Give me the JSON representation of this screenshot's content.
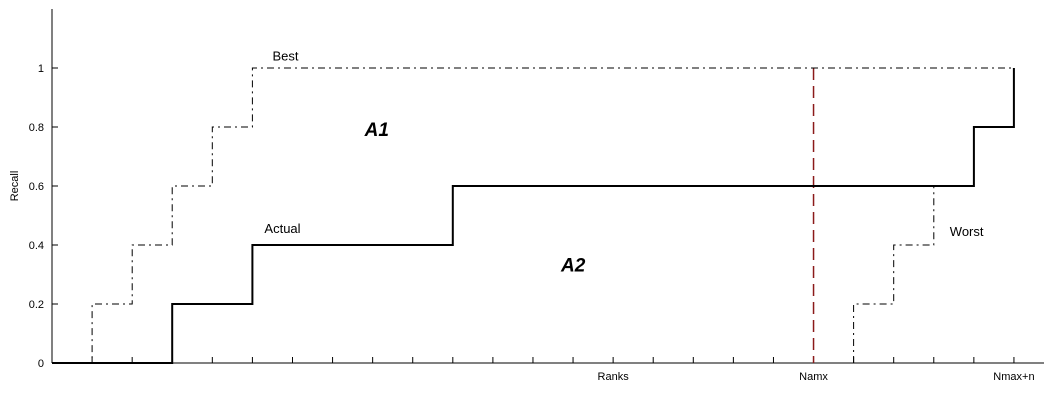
{
  "chart_data": {
    "type": "line",
    "title": "",
    "xlabel": "",
    "ylabel": "Recall",
    "xlim": [
      0,
      24.75
    ],
    "ylim": [
      0,
      1.2
    ],
    "y_ticks": [
      0,
      0.2,
      0.4,
      0.6,
      0.8,
      1
    ],
    "y_tick_labels": [
      "0",
      "0.2",
      "0.4",
      "0.6",
      "0.8",
      "1"
    ],
    "x_minor_ticks": [
      1,
      2,
      3,
      4,
      5,
      6,
      7,
      8,
      9,
      10,
      11,
      12,
      13,
      14,
      15,
      16,
      17,
      18,
      19,
      20,
      21,
      22,
      23,
      24
    ],
    "x_tick_labels": [
      {
        "x": 14,
        "label": "Ranks"
      },
      {
        "x": 19,
        "label": "Namx"
      },
      {
        "x": 24,
        "label": "Nmax+n"
      }
    ],
    "grid": false,
    "series": [
      {
        "name": "Best",
        "style": "dashdot",
        "color": "#000000",
        "points": [
          [
            0,
            0
          ],
          [
            1,
            0
          ],
          [
            1,
            0.2
          ],
          [
            2,
            0.2
          ],
          [
            2,
            0.4
          ],
          [
            3,
            0.4
          ],
          [
            3,
            0.6
          ],
          [
            4,
            0.6
          ],
          [
            4,
            0.8
          ],
          [
            5,
            0.8
          ],
          [
            5,
            1
          ],
          [
            24,
            1
          ]
        ]
      },
      {
        "name": "Actual",
        "style": "solid",
        "color": "#000000",
        "points": [
          [
            0,
            0
          ],
          [
            3,
            0
          ],
          [
            3,
            0.2
          ],
          [
            5,
            0.2
          ],
          [
            5,
            0.4
          ],
          [
            10,
            0.4
          ],
          [
            10,
            0.6
          ],
          [
            23,
            0.6
          ],
          [
            23,
            0.8
          ],
          [
            24,
            0.8
          ],
          [
            24,
            1
          ]
        ]
      },
      {
        "name": "Worst",
        "style": "dashdot",
        "color": "#000000",
        "points": [
          [
            20,
            0
          ],
          [
            20,
            0.2
          ],
          [
            21,
            0.2
          ],
          [
            21,
            0.4
          ],
          [
            22,
            0.4
          ],
          [
            22,
            0.6
          ]
        ]
      }
    ],
    "vertical_lines": [
      {
        "x": 19,
        "style": "dashed",
        "color": "#8b1a1a"
      }
    ],
    "annotations": [
      {
        "text": "Best",
        "x": 5.5,
        "y": 1.025
      },
      {
        "text": "Actual",
        "x": 5.3,
        "y": 0.44
      },
      {
        "text": "Worst",
        "x": 22.4,
        "y": 0.43
      },
      {
        "text": "A1",
        "x": 7.8,
        "y": 0.77,
        "style": "region"
      },
      {
        "text": "A2",
        "x": 12.7,
        "y": 0.31,
        "style": "region"
      }
    ]
  }
}
